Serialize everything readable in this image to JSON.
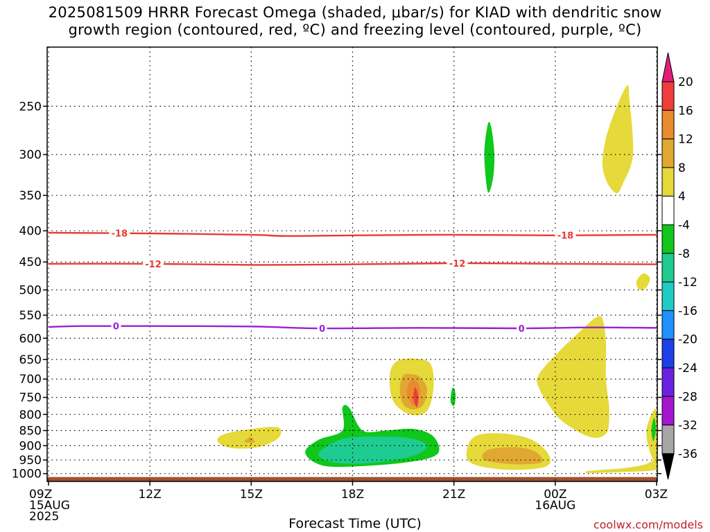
{
  "title_line1": "2025081509 HRRR Forecast Omega (shaded, μbar/s) for KIAD with dendritic snow",
  "title_line2": "growth region (contoured, red, ºC) and freezing level (contoured, purple, ºC)",
  "credit": "coolwx.com/models",
  "chart_data": {
    "type": "heatmap",
    "title": "2025081509 HRRR Forecast Omega (shaded, μbar/s) for KIAD with dendritic snow growth region (contoured, red, ºC) and freezing level (contoured, purple, ºC)",
    "xlabel": "Forecast Time (UTC)",
    "ylabel": "",
    "x_ticks": [
      {
        "hour": 0,
        "lines": [
          "09Z",
          "15AUG",
          "2025"
        ]
      },
      {
        "hour": 3,
        "lines": [
          "12Z"
        ]
      },
      {
        "hour": 6,
        "lines": [
          "15Z"
        ]
      },
      {
        "hour": 9,
        "lines": [
          "18Z"
        ]
      },
      {
        "hour": 12,
        "lines": [
          "21Z"
        ]
      },
      {
        "hour": 15,
        "lines": [
          "00Z",
          "16AUG"
        ]
      },
      {
        "hour": 18,
        "lines": [
          "03Z"
        ]
      }
    ],
    "xlim": [
      0,
      18
    ],
    "y_axis": "pressure (hPa), inverted, log scale",
    "y_ticks": [
      250,
      300,
      350,
      400,
      450,
      500,
      550,
      600,
      650,
      700,
      750,
      800,
      850,
      900,
      950,
      1000
    ],
    "ylim": [
      1030,
      200
    ],
    "grid": true,
    "contours": [
      {
        "name": "-18",
        "color": "#e83a33",
        "label": "-18",
        "points": [
          [
            0,
            403
          ],
          [
            3,
            404
          ],
          [
            6,
            406
          ],
          [
            7,
            408
          ],
          [
            9,
            407
          ],
          [
            12,
            406
          ],
          [
            15,
            407
          ],
          [
            18,
            406
          ]
        ],
        "label_hours": [
          2.1,
          15.3
        ]
      },
      {
        "name": "-12",
        "color": "#e83a33",
        "label": "-12",
        "points": [
          [
            0,
            453
          ],
          [
            3,
            453
          ],
          [
            6,
            455
          ],
          [
            9,
            454
          ],
          [
            12,
            452
          ],
          [
            15,
            453
          ],
          [
            18,
            454
          ]
        ],
        "label_hours": [
          3.1,
          12.1
        ]
      },
      {
        "name": "0",
        "color": "#9b1fd4",
        "label": "0",
        "points": [
          [
            0,
            575
          ],
          [
            1,
            573
          ],
          [
            3,
            573
          ],
          [
            6,
            574
          ],
          [
            8,
            578
          ],
          [
            11,
            577
          ],
          [
            14,
            578
          ],
          [
            16,
            576
          ],
          [
            18,
            577
          ]
        ],
        "label_hours": [
          2.0,
          8.1,
          14.0
        ]
      }
    ],
    "omega_regions": [
      {
        "level": "4 to 8",
        "color": "#e6d93a",
        "points": [
          [
            17.1,
            232
          ],
          [
            16.6,
            270
          ],
          [
            16.4,
            305
          ],
          [
            16.5,
            330
          ],
          [
            16.8,
            347
          ],
          [
            17.0,
            335
          ],
          [
            17.3,
            300
          ],
          [
            17.2,
            245
          ]
        ]
      },
      {
        "level": "4 to 8",
        "color": "#e6d93a",
        "points": [
          [
            17.6,
            470
          ],
          [
            17.4,
            485
          ],
          [
            17.5,
            500
          ],
          [
            17.7,
            495
          ],
          [
            17.8,
            478
          ]
        ]
      },
      {
        "level": "4 to 8",
        "color": "#e6d93a",
        "points": [
          [
            16.2,
            555
          ],
          [
            15.8,
            580
          ],
          [
            15.0,
            640
          ],
          [
            14.5,
            690
          ],
          [
            14.5,
            720
          ],
          [
            14.8,
            770
          ],
          [
            15.2,
            820
          ],
          [
            16.0,
            870
          ],
          [
            16.5,
            860
          ],
          [
            16.6,
            790
          ],
          [
            16.5,
            700
          ],
          [
            16.5,
            610
          ],
          [
            16.4,
            558
          ]
        ]
      },
      {
        "level": "4 to 8",
        "color": "#e6d93a",
        "points": [
          [
            17.9,
            790
          ],
          [
            17.7,
            850
          ],
          [
            17.8,
            920
          ],
          [
            18.0,
            955
          ],
          [
            18.0,
            800
          ]
        ]
      },
      {
        "level": "4 to 8",
        "color": "#e6d93a",
        "points": [
          [
            16.0,
            990
          ],
          [
            17.0,
            980
          ],
          [
            17.6,
            968
          ],
          [
            18.0,
            950
          ],
          [
            18.0,
            985
          ],
          [
            17.0,
            994
          ],
          [
            16.0,
            998
          ]
        ]
      },
      {
        "level": "4 to 8",
        "color": "#e6d93a",
        "points": [
          [
            10.3,
            655
          ],
          [
            10.1,
            690
          ],
          [
            10.2,
            760
          ],
          [
            10.7,
            800
          ],
          [
            11.2,
            790
          ],
          [
            11.4,
            720
          ],
          [
            11.3,
            660
          ],
          [
            10.8,
            648
          ]
        ]
      },
      {
        "level": "8 to 12",
        "color": "#e0a832",
        "points": [
          [
            10.5,
            690
          ],
          [
            10.4,
            730
          ],
          [
            10.5,
            770
          ],
          [
            10.8,
            785
          ],
          [
            11.1,
            770
          ],
          [
            11.2,
            725
          ],
          [
            11.0,
            695
          ],
          [
            10.8,
            688
          ]
        ]
      },
      {
        "level": "12 to 16",
        "color": "#e88a2e",
        "points": [
          [
            10.7,
            705
          ],
          [
            10.6,
            740
          ],
          [
            10.8,
            775
          ],
          [
            10.95,
            760
          ],
          [
            11.0,
            730
          ],
          [
            10.9,
            708
          ]
        ]
      },
      {
        "level": "16 to 20",
        "color": "#ee3d3a",
        "points": [
          [
            10.85,
            722
          ],
          [
            10.8,
            752
          ],
          [
            10.9,
            778
          ],
          [
            10.95,
            750
          ]
        ]
      },
      {
        "level": "4 to 8",
        "color": "#e6d93a",
        "points": [
          [
            5.2,
            862
          ],
          [
            5.0,
            885
          ],
          [
            5.4,
            908
          ],
          [
            6.2,
            905
          ],
          [
            6.8,
            875
          ],
          [
            6.8,
            840
          ],
          [
            6.0,
            845
          ]
        ]
      },
      {
        "level": "8 to 12",
        "color": "#e0a832",
        "points": [
          [
            5.9,
            875
          ],
          [
            5.8,
            888
          ],
          [
            6.1,
            888
          ],
          [
            6.0,
            872
          ]
        ]
      },
      {
        "level": "4 to 8",
        "color": "#e6d93a",
        "points": [
          [
            12.7,
            865
          ],
          [
            12.4,
            905
          ],
          [
            12.5,
            960
          ],
          [
            13.5,
            985
          ],
          [
            14.7,
            975
          ],
          [
            14.8,
            930
          ],
          [
            14.3,
            880
          ],
          [
            13.5,
            860
          ]
        ]
      },
      {
        "level": "8 to 12",
        "color": "#e0a832",
        "points": [
          [
            13.0,
            915
          ],
          [
            12.9,
            950
          ],
          [
            13.8,
            965
          ],
          [
            14.6,
            958
          ],
          [
            14.4,
            920
          ],
          [
            13.8,
            905
          ]
        ]
      },
      {
        "level": "-8 to -4",
        "color": "#10c71b",
        "points": [
          [
            8.7,
            780
          ],
          [
            8.7,
            850
          ],
          [
            8.0,
            880
          ],
          [
            7.6,
            920
          ],
          [
            7.9,
            960
          ],
          [
            8.6,
            975
          ],
          [
            10.5,
            960
          ],
          [
            11.5,
            930
          ],
          [
            11.4,
            870
          ],
          [
            10.8,
            845
          ],
          [
            10.0,
            850
          ],
          [
            9.3,
            850
          ],
          [
            8.9,
            780
          ]
        ]
      },
      {
        "level": "-12 to -8",
        "color": "#1ecb90",
        "points": [
          [
            8.8,
            875
          ],
          [
            8.2,
            905
          ],
          [
            8.0,
            935
          ],
          [
            8.5,
            960
          ],
          [
            9.6,
            960
          ],
          [
            10.8,
            935
          ],
          [
            11.2,
            900
          ],
          [
            10.7,
            875
          ],
          [
            9.8,
            870
          ]
        ]
      },
      {
        "level": "-8 to -4",
        "color": "#10c71b",
        "points": [
          [
            11.95,
            725
          ],
          [
            11.9,
            760
          ],
          [
            12.0,
            775
          ],
          [
            12.05,
            750
          ],
          [
            12.02,
            728
          ]
        ]
      },
      {
        "level": "-8 to -4",
        "color": "#10c71b",
        "points": [
          [
            13.0,
            268
          ],
          [
            12.9,
            300
          ],
          [
            13.0,
            345
          ],
          [
            13.15,
            330
          ],
          [
            13.2,
            300
          ],
          [
            13.1,
            270
          ]
        ]
      },
      {
        "level": "-8 to -4",
        "color": "#10c71b",
        "points": [
          [
            17.9,
            815
          ],
          [
            17.85,
            850
          ],
          [
            17.9,
            885
          ],
          [
            17.98,
            850
          ],
          [
            17.95,
            815
          ]
        ]
      }
    ],
    "ground_below_hpa": 1013,
    "ground_color": "#a0522d",
    "colorbar": {
      "labels": [
        "20",
        "16",
        "12",
        "8",
        "4",
        "-4",
        "-8",
        "-12",
        "-16",
        "-20",
        "-24",
        "-28",
        "-32",
        "-36"
      ],
      "colors": [
        "#ee3d3a",
        "#e88a2e",
        "#e0a832",
        "#e6d93a",
        "#ffffff",
        "#10c71b",
        "#1ecb90",
        "#20cbc6",
        "#1e90ff",
        "#1e3ee8",
        "#6a22e0",
        "#a415cf",
        "#a6a6a6"
      ],
      "top_arrow_color": "#e01f7a",
      "bottom_arrow_color": "#000000"
    }
  }
}
